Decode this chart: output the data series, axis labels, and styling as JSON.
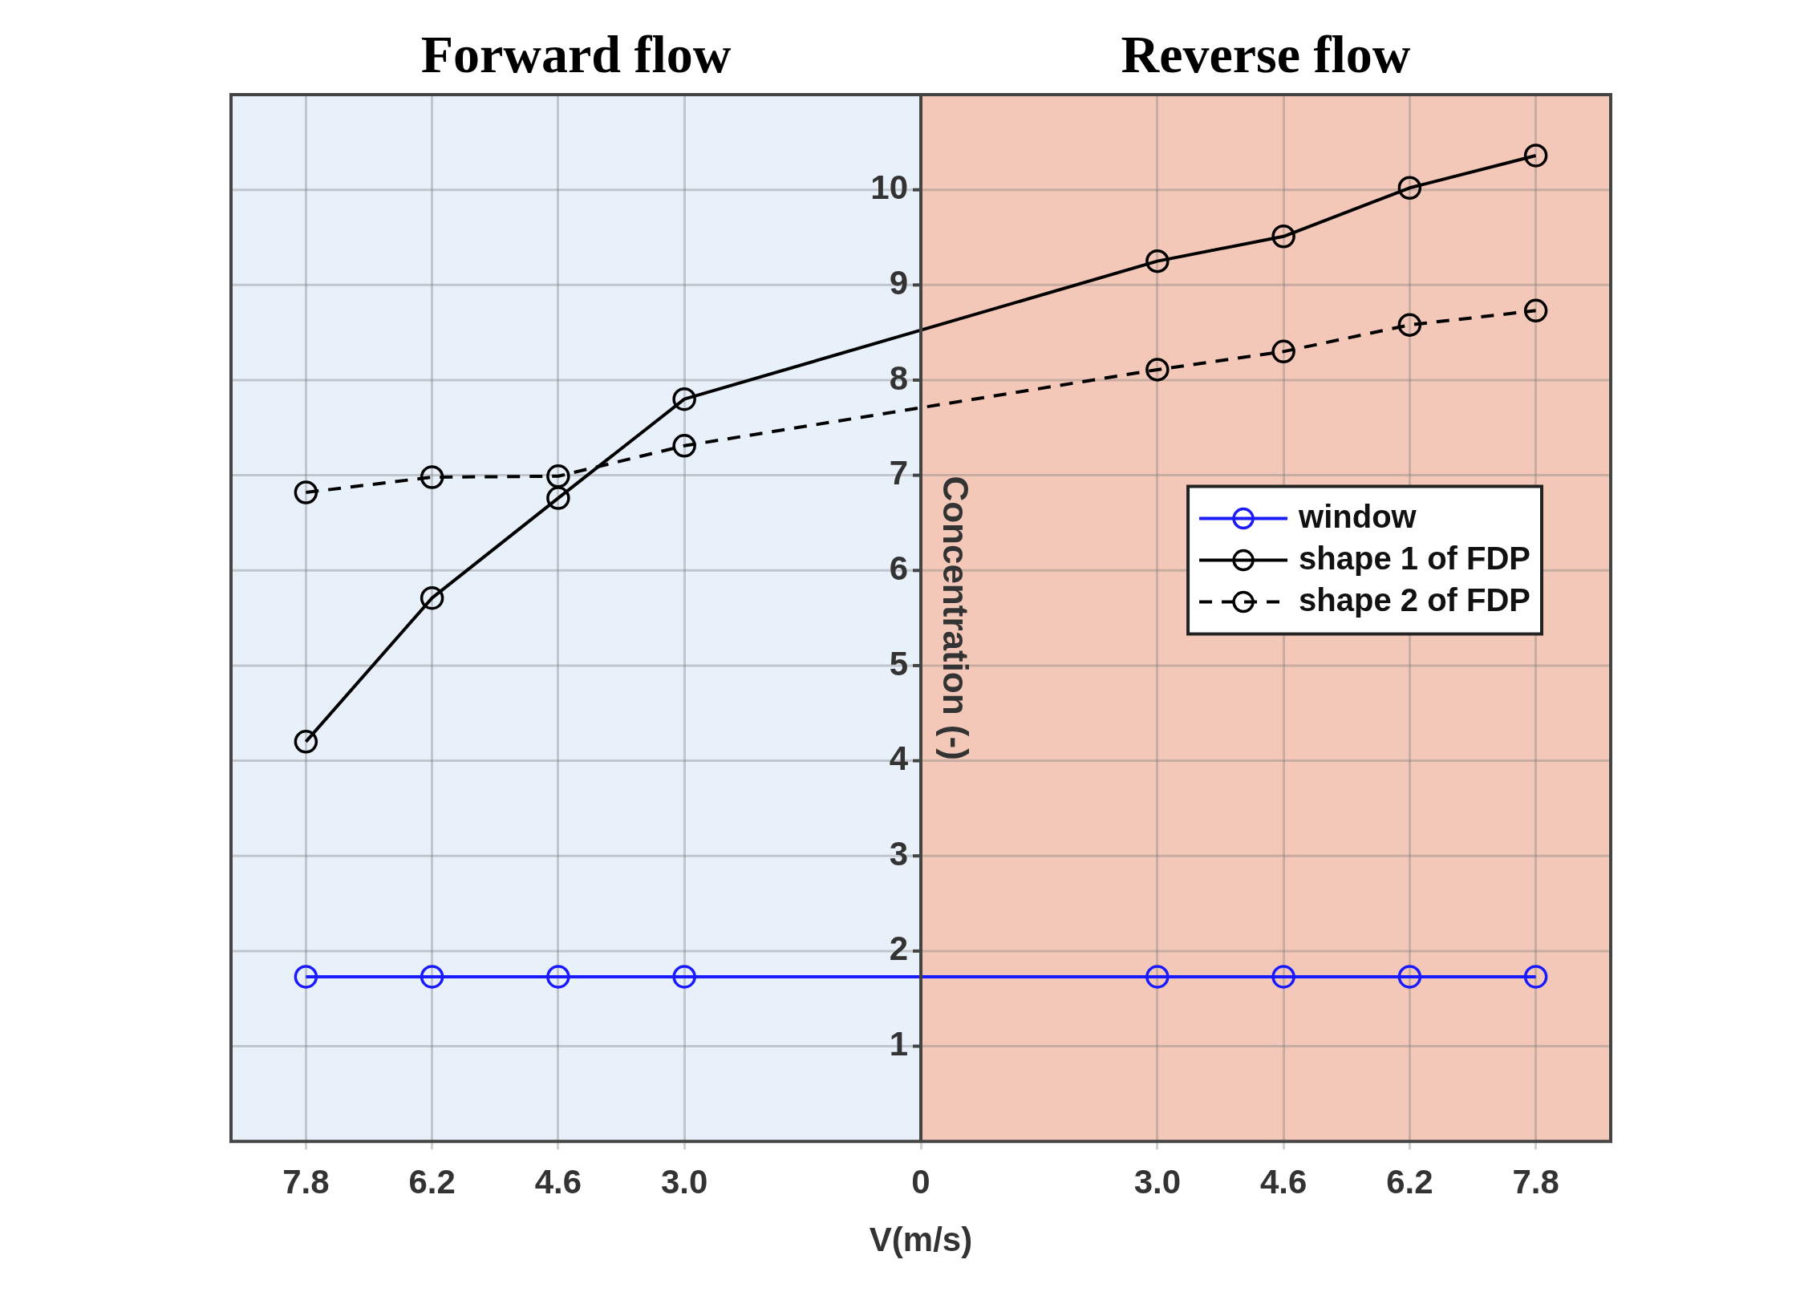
{
  "chart_data": {
    "type": "line",
    "xlabel": "V(m/s)",
    "ylabel": "Concentration (-)",
    "x": [
      -7.8,
      -6.2,
      -4.6,
      -3.0,
      3.0,
      4.6,
      6.2,
      7.8
    ],
    "series": [
      {
        "name": "window",
        "color": "#1a1aff",
        "values": [
          1.73,
          1.73,
          1.73,
          1.73,
          1.73,
          1.73,
          1.73,
          1.73
        ]
      },
      {
        "name": "shape 1 of FDP",
        "color": "#000000",
        "values": [
          4.2,
          5.71,
          6.76,
          7.8,
          9.25,
          9.51,
          10.02,
          10.36
        ]
      },
      {
        "name": "shape 2 of FDP",
        "color": "#000000",
        "line_style": "dashed",
        "values": [
          6.82,
          6.98,
          6.99,
          7.31,
          8.11,
          8.3,
          8.58,
          8.73
        ]
      }
    ],
    "xlim": [
      -8.75,
      8.75
    ],
    "xticks": [
      {
        "value": -7.8,
        "label": "7.8"
      },
      {
        "value": -6.2,
        "label": "6.2"
      },
      {
        "value": -4.6,
        "label": "4.6"
      },
      {
        "value": -3.0,
        "label": "3.0"
      },
      0,
      {
        "value": 3.0,
        "label": "3.0"
      },
      {
        "value": 4.6,
        "label": "4.6"
      },
      {
        "value": 6.2,
        "label": "6.2"
      },
      {
        "value": 7.8,
        "label": "7.8"
      }
    ],
    "ylim": [
      0,
      11
    ],
    "yticks": [
      1,
      2,
      3,
      4,
      5,
      6,
      7,
      8,
      9,
      10
    ],
    "bands": [
      {
        "axis": "x",
        "from": -8.75,
        "to": 0,
        "label": "Forward flow",
        "color": "#e8f0fa"
      },
      {
        "axis": "x",
        "from": 0,
        "to": 8.75,
        "label": "Reverse flow",
        "color": "#f3c8b8"
      }
    ],
    "grid": true,
    "legend": "right",
    "marker": "circle",
    "line_style": "solid"
  }
}
